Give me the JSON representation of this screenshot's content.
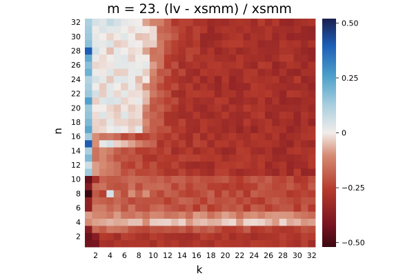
{
  "chart_data": {
    "type": "heatmap",
    "title": "m = 23. (lv - xsmm) / xsmm",
    "xlabel": "k",
    "ylabel": "n",
    "x_range": [
      1,
      32
    ],
    "y_range": [
      1,
      32
    ],
    "x_ticks": [
      2,
      4,
      6,
      8,
      10,
      12,
      14,
      16,
      18,
      20,
      22,
      24,
      26,
      28,
      30,
      32
    ],
    "y_ticks": [
      2,
      4,
      6,
      8,
      10,
      12,
      14,
      16,
      18,
      20,
      22,
      24,
      26,
      28,
      30,
      32
    ],
    "colorbar": {
      "range": [
        -0.52,
        0.52
      ],
      "ticks": [
        -0.5,
        -0.25,
        0,
        0.25,
        0.5
      ],
      "tick_labels": [
        "−0.50",
        "−0.25",
        "0",
        "0.25",
        "0.50"
      ],
      "colormap": "balance"
    },
    "grid": false,
    "value_sample_rows": [
      {
        "n": 32,
        "values_k1_to_k10": [
          0.12,
          0.05,
          0.03,
          0.08,
          0.05,
          0.02,
          0.01,
          0.0,
          -0.08,
          -0.12
        ]
      },
      {
        "n": 28,
        "values_k1_to_k10": [
          0.4,
          0.05,
          0.01,
          -0.05,
          0.02,
          0.0,
          -0.02,
          -0.01,
          -0.08,
          -0.15
        ]
      },
      {
        "n": 15,
        "values_k1_to_k10": [
          0.4,
          -0.1,
          0.02,
          0.05,
          -0.03,
          -0.05,
          -0.08,
          -0.12,
          -0.16,
          -0.18
        ]
      },
      {
        "n": 10,
        "values_k1_to_k10": [
          -0.45,
          -0.3,
          -0.18,
          -0.2,
          -0.2,
          -0.18,
          -0.16,
          -0.17,
          -0.18,
          -0.2
        ]
      },
      {
        "n": 8,
        "values_k1_to_k10": [
          -0.52,
          -0.2,
          -0.25,
          0.05,
          -0.15,
          -0.22,
          -0.1,
          -0.18,
          -0.1,
          -0.2
        ]
      }
    ],
    "far_field_value": -0.3
  }
}
